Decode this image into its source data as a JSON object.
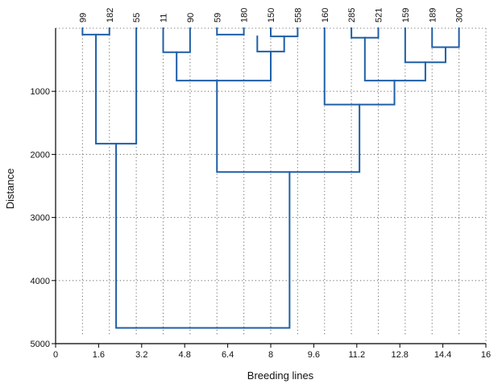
{
  "chart_data": {
    "type": "dendrogram",
    "xlabel": "Breeding lines",
    "ylabel": "Distance",
    "xlim": [
      0,
      16
    ],
    "ylim": [
      5000,
      0
    ],
    "y_inverted": true,
    "x_ticks": [
      "0",
      "1.6",
      "3.2",
      "4.8",
      "6.4",
      "8",
      "9.6",
      "11.2",
      "12.8",
      "14.4",
      "16"
    ],
    "x_tick_values": [
      0,
      1.6,
      3.2,
      4.8,
      6.4,
      8,
      9.6,
      11.2,
      12.8,
      14.4,
      16
    ],
    "y_ticks": [
      "1000",
      "2000",
      "3000",
      "4000",
      "5000"
    ],
    "y_tick_values": [
      1000,
      2000,
      3000,
      4000,
      5000
    ],
    "grid": true,
    "leaves": [
      {
        "label": "99",
        "x": 1
      },
      {
        "label": "182",
        "x": 2
      },
      {
        "label": "55",
        "x": 3
      },
      {
        "label": "11",
        "x": 4
      },
      {
        "label": "90",
        "x": 5
      },
      {
        "label": "59",
        "x": 6
      },
      {
        "label": "180",
        "x": 7
      },
      {
        "label": "150",
        "x": 8
      },
      {
        "label": "558",
        "x": 9
      },
      {
        "label": "160",
        "x": 10
      },
      {
        "label": "285",
        "x": 11
      },
      {
        "label": "521",
        "x": 12
      },
      {
        "label": "159",
        "x": 13
      },
      {
        "label": "189",
        "x": 14
      },
      {
        "label": "300",
        "x": 15
      }
    ],
    "merges": [
      {
        "left_x": 1,
        "left_h": 0,
        "right_x": 2,
        "right_h": 0,
        "height": 100
      },
      {
        "left_x": 6,
        "left_h": 0,
        "right_x": 7,
        "right_h": 0,
        "height": 100
      },
      {
        "left_x": 8,
        "left_h": 0,
        "right_x": 9,
        "right_h": 0,
        "height": 130
      },
      {
        "left_x": 11,
        "left_h": 0,
        "right_x": 12,
        "right_h": 0,
        "height": 150
      },
      {
        "left_x": 14,
        "left_h": 0,
        "right_x": 15,
        "right_h": 0,
        "height": 300
      },
      {
        "left_x": 7.5,
        "left_h": 130,
        "right_x": 8.5,
        "right_h": 130,
        "height": 370
      },
      {
        "left_x": 4,
        "left_h": 0,
        "right_x": 5,
        "right_h": 0,
        "height": 380
      },
      {
        "left_x": 13,
        "left_h": 0,
        "right_x": 14.5,
        "right_h": 300,
        "height": 540
      },
      {
        "left_x": 4.5,
        "left_h": 380,
        "right_x": 8.0,
        "right_h": 370,
        "height": 830
      },
      {
        "left_x": 11.5,
        "left_h": 150,
        "right_x": 13.75,
        "right_h": 540,
        "height": 830
      },
      {
        "left_x": 10,
        "left_h": 0,
        "right_x": 12.6,
        "right_h": 830,
        "height": 1210
      },
      {
        "left_x": 1.5,
        "left_h": 100,
        "right_x": 3,
        "right_h": 0,
        "height": 1830
      },
      {
        "left_x": 6.0,
        "left_h": 830,
        "right_x": 11.3,
        "right_h": 1210,
        "height": 2280
      },
      {
        "left_x": 2.25,
        "left_h": 1830,
        "right_x": 8.7,
        "right_h": 2280,
        "height": 4750
      }
    ],
    "colors": {
      "branch": "#1f5fa6",
      "grid": "#777777",
      "axis": "#000000"
    }
  }
}
